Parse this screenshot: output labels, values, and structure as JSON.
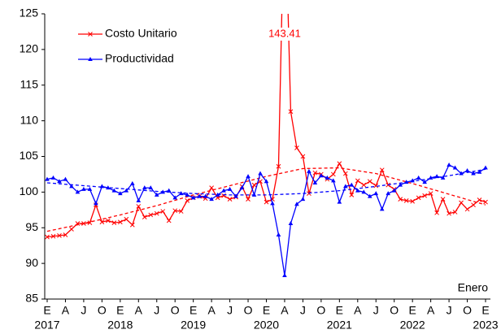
{
  "chart_data": {
    "type": "line",
    "categories": [
      "E",
      null,
      null,
      "A",
      null,
      null,
      "J",
      null,
      null,
      "O",
      null,
      null,
      "E",
      null,
      null,
      "A",
      null,
      null,
      "J",
      null,
      null,
      "O",
      null,
      null,
      "E",
      null,
      null,
      "A",
      null,
      null,
      "J",
      null,
      null,
      "O",
      null,
      null,
      "E",
      null,
      null,
      "A",
      null,
      null,
      "J",
      null,
      null,
      "O",
      null,
      null,
      "E",
      null,
      null,
      "A",
      null,
      null,
      "J",
      null,
      null,
      "O",
      null,
      null,
      "E",
      null,
      null,
      "A",
      null,
      null,
      "J",
      null,
      null,
      "O",
      null,
      null,
      "E"
    ],
    "years": [
      "2017",
      "2018",
      "2019",
      "2020",
      "2021",
      "2022",
      "2023"
    ],
    "x_note": "Enero",
    "series": [
      {
        "name": "Costo Unitario",
        "color": "#ff0000",
        "values": [
          93.7,
          93.8,
          93.9,
          94.0,
          94.8,
          95.6,
          95.6,
          95.7,
          98.2,
          95.8,
          96.0,
          95.7,
          95.8,
          96.2,
          95.4,
          98.0,
          96.5,
          96.8,
          97.0,
          97.3,
          96.0,
          97.4,
          97.3,
          98.8,
          99.2,
          99.4,
          99.1,
          100.6,
          99.2,
          99.5,
          99.0,
          99.3,
          100.8,
          99.0,
          101.0,
          101.5,
          98.6,
          99.0,
          103.6,
          143.41,
          111.3,
          106.2,
          105.0,
          99.8,
          102.7,
          102.5,
          101.8,
          102.5,
          104.0,
          102.6,
          99.6,
          101.6,
          101.0,
          101.5,
          100.9,
          103.1,
          101.0,
          100.4,
          99.0,
          98.8,
          98.7,
          99.2,
          99.5,
          99.8,
          97.1,
          99.0,
          97.0,
          97.2,
          98.5,
          97.6,
          98.2,
          98.9,
          98.6
        ],
        "trend": [
          94.5,
          95.6,
          96.8,
          98.1,
          99.6,
          100.9,
          102.2,
          103.3,
          103.4,
          102.6,
          101.2,
          99.7,
          98.2
        ]
      },
      {
        "name": "Productividad",
        "color": "#0000ff",
        "values": [
          101.8,
          102.0,
          101.5,
          101.8,
          100.8,
          100.0,
          100.4,
          100.4,
          98.4,
          100.8,
          100.6,
          100.2,
          99.8,
          100.2,
          101.2,
          98.8,
          100.6,
          100.6,
          99.6,
          100.0,
          100.2,
          99.2,
          99.8,
          99.6,
          99.2,
          99.4,
          99.4,
          99.0,
          99.6,
          100.2,
          100.4,
          99.4,
          100.6,
          102.2,
          99.6,
          102.6,
          101.5,
          98.4,
          94.0,
          88.3,
          95.6,
          98.3,
          99.0,
          102.9,
          101.3,
          102.3,
          102.0,
          101.6,
          98.6,
          100.8,
          101.0,
          100.2,
          100.0,
          99.4,
          99.8,
          97.6,
          99.8,
          100.2,
          101.0,
          101.4,
          101.6,
          102.0,
          101.4,
          102.0,
          102.2,
          102.0,
          103.8,
          103.4,
          102.6,
          103.0,
          102.6,
          102.8,
          103.4
        ],
        "trend": [
          101.3,
          100.9,
          100.5,
          100.1,
          99.8,
          99.6,
          99.6,
          99.8,
          100.2,
          100.8,
          101.5,
          102.3,
          103.2
        ]
      }
    ],
    "annotations": [
      {
        "text": "143.41",
        "series": 0,
        "index": 39
      }
    ],
    "ylim": [
      85,
      125
    ],
    "yticks": [
      85,
      90,
      95,
      100,
      105,
      110,
      115,
      120,
      125
    ]
  }
}
